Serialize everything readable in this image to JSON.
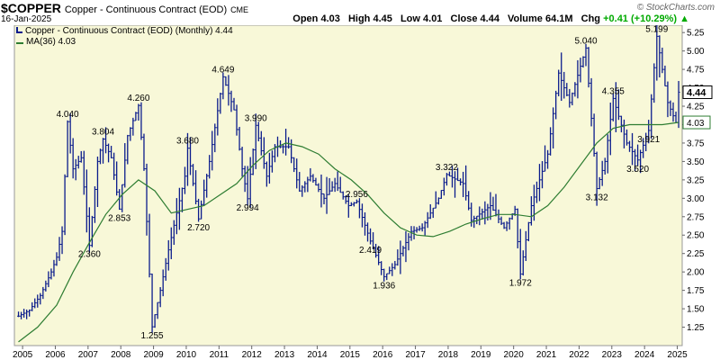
{
  "header": {
    "symbol": "$COPPER",
    "description": "Copper - Continuous Contract (EOD)",
    "exchange": "CME",
    "date": "16-Jan-2025",
    "brand": "© StockCharts.com",
    "open_label": "Open",
    "open": "4.03",
    "high_label": "High",
    "high": "4.45",
    "low_label": "Low",
    "low": "4.01",
    "close_label": "Close",
    "close": "4.44",
    "volume_label": "Volume",
    "volume": "64.1M",
    "chg_label": "Chg",
    "chg": "+0.41 (+10.29%)",
    "chg_icon": "up-triangle-icon"
  },
  "legend": {
    "price": "Copper - Continuous Contract (EOD) (Monthly) 4.44",
    "ma": "MA(36) 4.03"
  },
  "colors": {
    "price": "#0b1c8c",
    "ma": "#2e7d32",
    "bg": "#f8f8d8",
    "up": "#00aa00"
  },
  "chart_data": {
    "type": "line",
    "style": "monthly OHLC bars with moving average",
    "grid": false,
    "legend_position": "top-left",
    "ylim": [
      1.0,
      5.35
    ],
    "y_ticks": [
      "1.25",
      "1.50",
      "1.75",
      "2.00",
      "2.25",
      "2.50",
      "2.75",
      "3.00",
      "3.25",
      "3.50",
      "3.75",
      "4.00",
      "4.25",
      "4.50",
      "4.75",
      "5.00",
      "5.25"
    ],
    "x_ticks": [
      "2005",
      "2006",
      "2007",
      "2008",
      "2009",
      "2010",
      "2011",
      "2012",
      "2013",
      "2014",
      "2015",
      "2016",
      "2017",
      "2018",
      "2019",
      "2020",
      "2021",
      "2022",
      "2023",
      "2024",
      "2025"
    ],
    "last_price_label": "4.44",
    "last_ma_label": "4.03",
    "series": [
      {
        "name": "Copper - Continuous Contract (EOD) (Monthly)",
        "points": [
          [
            "2004-11",
            1.4
          ],
          [
            "2005-03",
            1.48
          ],
          [
            "2005-07",
            1.68
          ],
          [
            "2005-11",
            2.0
          ],
          [
            "2006-01",
            2.2
          ],
          [
            "2006-03",
            2.55
          ],
          [
            "2006-05",
            4.04
          ],
          [
            "2006-07",
            3.4
          ],
          [
            "2006-10",
            3.55
          ],
          [
            "2007-01",
            2.36
          ],
          [
            "2007-04",
            3.5
          ],
          [
            "2007-06",
            3.804
          ],
          [
            "2007-09",
            3.55
          ],
          [
            "2007-12",
            2.853
          ],
          [
            "2008-03",
            3.85
          ],
          [
            "2008-07",
            4.26
          ],
          [
            "2008-09",
            3.4
          ],
          [
            "2008-12",
            1.255
          ],
          [
            "2009-03",
            1.75
          ],
          [
            "2009-06",
            2.3
          ],
          [
            "2009-09",
            2.8
          ],
          [
            "2009-12",
            3.3
          ],
          [
            "2010-01",
            3.68
          ],
          [
            "2010-05",
            2.72
          ],
          [
            "2010-09",
            3.5
          ],
          [
            "2011-02",
            4.649
          ],
          [
            "2011-06",
            4.2
          ],
          [
            "2011-09",
            3.4
          ],
          [
            "2011-11",
            2.994
          ],
          [
            "2012-02",
            3.99
          ],
          [
            "2012-06",
            3.3
          ],
          [
            "2012-09",
            3.7
          ],
          [
            "2013-02",
            3.7
          ],
          [
            "2013-06",
            3.1
          ],
          [
            "2013-10",
            3.3
          ],
          [
            "2014-03",
            3.0
          ],
          [
            "2014-07",
            3.2
          ],
          [
            "2014-12",
            2.9
          ],
          [
            "2015-03",
            2.956
          ],
          [
            "2015-08",
            2.419
          ],
          [
            "2016-01",
            1.936
          ],
          [
            "2016-05",
            2.1
          ],
          [
            "2016-11",
            2.55
          ],
          [
            "2017-03",
            2.6
          ],
          [
            "2017-09",
            3.0
          ],
          [
            "2017-12",
            3.322
          ],
          [
            "2018-06",
            3.2
          ],
          [
            "2018-09",
            2.7
          ],
          [
            "2019-04",
            2.9
          ],
          [
            "2019-09",
            2.6
          ],
          [
            "2020-01",
            2.85
          ],
          [
            "2020-03",
            1.972
          ],
          [
            "2020-07",
            2.9
          ],
          [
            "2021-01",
            3.6
          ],
          [
            "2021-05",
            4.7
          ],
          [
            "2021-09",
            4.3
          ],
          [
            "2022-03",
            5.04
          ],
          [
            "2022-07",
            3.132
          ],
          [
            "2022-10",
            3.5
          ],
          [
            "2023-01",
            4.355
          ],
          [
            "2023-06",
            3.75
          ],
          [
            "2023-10",
            3.52
          ],
          [
            "2024-02",
            3.921
          ],
          [
            "2024-05",
            5.199
          ],
          [
            "2024-09",
            4.3
          ],
          [
            "2024-12",
            4.03
          ],
          [
            "2025-01",
            4.44
          ]
        ]
      },
      {
        "name": "MA(36)",
        "points": [
          [
            "2004-11",
            1.05
          ],
          [
            "2005-06",
            1.25
          ],
          [
            "2006-01",
            1.55
          ],
          [
            "2006-07",
            2.0
          ],
          [
            "2007-01",
            2.4
          ],
          [
            "2007-07",
            2.78
          ],
          [
            "2008-01",
            3.05
          ],
          [
            "2008-07",
            3.25
          ],
          [
            "2009-01",
            3.1
          ],
          [
            "2009-07",
            2.8
          ],
          [
            "2010-01",
            2.85
          ],
          [
            "2010-07",
            2.9
          ],
          [
            "2011-01",
            3.05
          ],
          [
            "2011-07",
            3.2
          ],
          [
            "2012-01",
            3.45
          ],
          [
            "2012-07",
            3.65
          ],
          [
            "2013-01",
            3.75
          ],
          [
            "2013-07",
            3.7
          ],
          [
            "2014-01",
            3.6
          ],
          [
            "2014-07",
            3.4
          ],
          [
            "2015-01",
            3.25
          ],
          [
            "2015-07",
            3.05
          ],
          [
            "2016-01",
            2.8
          ],
          [
            "2016-07",
            2.6
          ],
          [
            "2017-01",
            2.5
          ],
          [
            "2017-07",
            2.48
          ],
          [
            "2018-01",
            2.55
          ],
          [
            "2018-07",
            2.65
          ],
          [
            "2019-01",
            2.72
          ],
          [
            "2019-07",
            2.78
          ],
          [
            "2020-01",
            2.78
          ],
          [
            "2020-07",
            2.75
          ],
          [
            "2021-01",
            2.9
          ],
          [
            "2021-07",
            3.15
          ],
          [
            "2022-01",
            3.45
          ],
          [
            "2022-07",
            3.75
          ],
          [
            "2023-01",
            3.95
          ],
          [
            "2023-07",
            4.0
          ],
          [
            "2024-01",
            4.0
          ],
          [
            "2024-07",
            4.0
          ],
          [
            "2025-01",
            4.03
          ]
        ]
      }
    ],
    "annotations": [
      {
        "x": "2006-05",
        "y": 4.04,
        "text": "4.040",
        "pos": "above"
      },
      {
        "x": "2007-06",
        "y": 3.804,
        "text": "3.804",
        "pos": "above"
      },
      {
        "x": "2008-07",
        "y": 4.26,
        "text": "4.260",
        "pos": "above"
      },
      {
        "x": "2007-01",
        "y": 2.36,
        "text": "2.360",
        "pos": "below"
      },
      {
        "x": "2007-12",
        "y": 2.853,
        "text": "2.853",
        "pos": "below"
      },
      {
        "x": "2008-12",
        "y": 1.255,
        "text": "1.255",
        "pos": "below"
      },
      {
        "x": "2010-01",
        "y": 3.68,
        "text": "3.680",
        "pos": "above"
      },
      {
        "x": "2010-05",
        "y": 2.72,
        "text": "2.720",
        "pos": "below"
      },
      {
        "x": "2011-02",
        "y": 4.649,
        "text": "4.649",
        "pos": "above"
      },
      {
        "x": "2011-11",
        "y": 2.994,
        "text": "2.994",
        "pos": "below"
      },
      {
        "x": "2012-02",
        "y": 3.99,
        "text": "3.990",
        "pos": "above"
      },
      {
        "x": "2015-03",
        "y": 2.956,
        "text": "2.956",
        "pos": "above"
      },
      {
        "x": "2015-08",
        "y": 2.419,
        "text": "2.419",
        "pos": "below"
      },
      {
        "x": "2016-01",
        "y": 1.936,
        "text": "1.936",
        "pos": "below"
      },
      {
        "x": "2017-12",
        "y": 3.322,
        "text": "3.322",
        "pos": "above"
      },
      {
        "x": "2020-03",
        "y": 1.972,
        "text": "1.972",
        "pos": "below"
      },
      {
        "x": "2022-03",
        "y": 5.04,
        "text": "5.040",
        "pos": "above"
      },
      {
        "x": "2022-07",
        "y": 3.132,
        "text": "3.132",
        "pos": "below"
      },
      {
        "x": "2023-01",
        "y": 4.355,
        "text": "4.355",
        "pos": "above"
      },
      {
        "x": "2023-10",
        "y": 3.52,
        "text": "3.520",
        "pos": "below"
      },
      {
        "x": "2024-02",
        "y": 3.921,
        "text": "3.921",
        "pos": "below"
      },
      {
        "x": "2024-05",
        "y": 5.199,
        "text": "5.199",
        "pos": "above"
      }
    ]
  }
}
